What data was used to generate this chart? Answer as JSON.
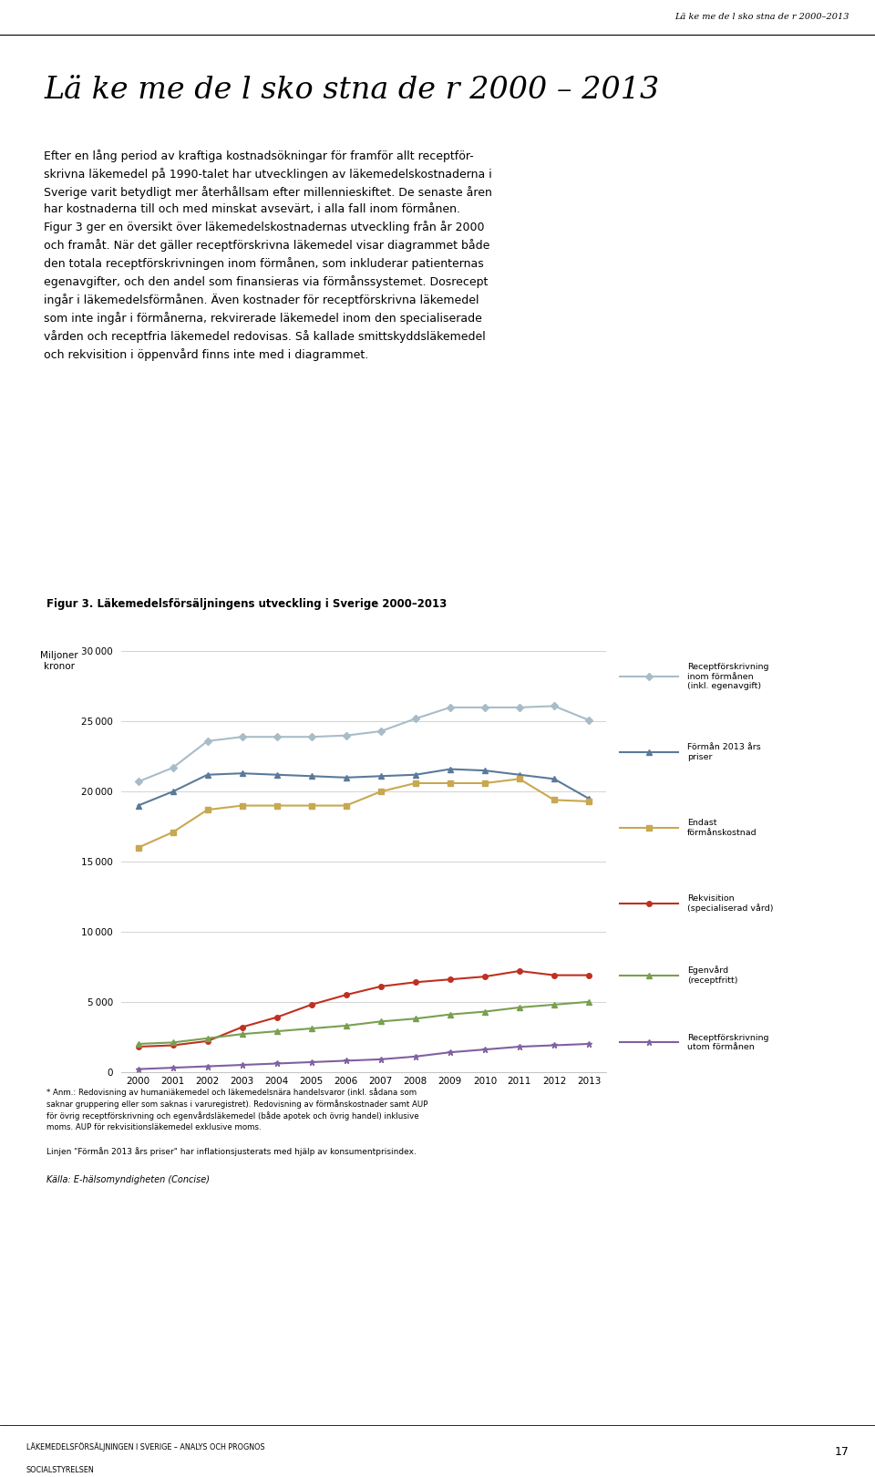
{
  "title_fig": "Figur 3. Läkemedelsförsäljningens utveckling i Sverige 2000–2013",
  "ylabel": "Miljoner\nkronor",
  "years": [
    2000,
    2001,
    2002,
    2003,
    2004,
    2005,
    2006,
    2007,
    2008,
    2009,
    2010,
    2011,
    2012,
    2013
  ],
  "series": {
    "receptforskrivning_formanen": {
      "label": "Receptförskrivning\ninom förmånen\n(inkl. egenavgift)",
      "color": "#a8bcc8",
      "linewidth": 1.5,
      "marker": "D",
      "markersize": 4,
      "values": [
        20700,
        21700,
        23600,
        23900,
        23900,
        23900,
        24000,
        24300,
        25200,
        26000,
        26000,
        26000,
        26100,
        25100
      ]
    },
    "forman_2013": {
      "label": "Förmån 2013 års\npriser",
      "color": "#5a7a9a",
      "linewidth": 1.5,
      "marker": "^",
      "markersize": 4,
      "values": [
        19000,
        20000,
        21200,
        21300,
        21200,
        21100,
        21000,
        21100,
        21200,
        21600,
        21500,
        21200,
        20900,
        19500
      ]
    },
    "endast_formans": {
      "label": "Endast\nförmånskostnad",
      "color": "#c8a850",
      "linewidth": 1.5,
      "marker": "s",
      "markersize": 4,
      "values": [
        16000,
        17100,
        18700,
        19000,
        19000,
        19000,
        19000,
        20000,
        20600,
        20600,
        20600,
        20900,
        19400,
        19300
      ]
    },
    "rekvisition": {
      "label": "Rekvisition\n(specialiserad vård)",
      "color": "#c03020",
      "linewidth": 1.5,
      "marker": "o",
      "markersize": 4,
      "values": [
        1800,
        1900,
        2200,
        3200,
        3900,
        4800,
        5500,
        6100,
        6400,
        6600,
        6800,
        7200,
        6900,
        6900
      ]
    },
    "egenvard": {
      "label": "Egenvård\n(receptfritt)",
      "color": "#78a050",
      "linewidth": 1.5,
      "marker": "^",
      "markersize": 4,
      "values": [
        2000,
        2100,
        2400,
        2700,
        2900,
        3100,
        3300,
        3600,
        3800,
        4100,
        4300,
        4600,
        4800,
        5000
      ]
    },
    "receptforskrivning_utom": {
      "label": "Receptförskrivning\nutom förmånen",
      "color": "#8060a0",
      "linewidth": 1.5,
      "marker": "*",
      "markersize": 5,
      "values": [
        200,
        300,
        400,
        500,
        600,
        700,
        800,
        900,
        1100,
        1400,
        1600,
        1800,
        1900,
        2000
      ]
    }
  },
  "xlim": [
    1999.5,
    2013.5
  ],
  "ylim": [
    0,
    30000
  ],
  "yticks": [
    0,
    5000,
    10000,
    15000,
    20000,
    25000,
    30000
  ],
  "bg_color": "#d4cfc3",
  "plot_bg_color": "#ffffff",
  "header_text": "Lä ke me de l sko stna de r 2000–2013",
  "page_title": "Lä ke me de l sko stna de r 2000 – 2013",
  "footnote1": "* Anm.: Redovisning av humaniäkemedel och läkemedelssnära handelsvaror (inkl. sådana som saknar gruppering eller som saknas i varuregistret). Redovisning av förmånskostnader samt AUP\nför övrig receptförskrivning och egenvårdsläkemedel (både apotek och övrig handel) inklusive moms. AUP för rekvisitionsläkemedel exklusive moms.",
  "footnote2": "Linjen “Förmån 2013 års priser” har inflationsjusterats med hjälp av konsumentprisindex.",
  "source": "Källa: E-hälsomyndigheten (Concise)",
  "bottom_left1": "LÄKEMEDELSFÖRSÄLJNINGEN I SVERIGE – ANALYS OCH PROGNOS",
  "bottom_left2": "SOCIALSTYRELSEN",
  "bottom_right": "17"
}
